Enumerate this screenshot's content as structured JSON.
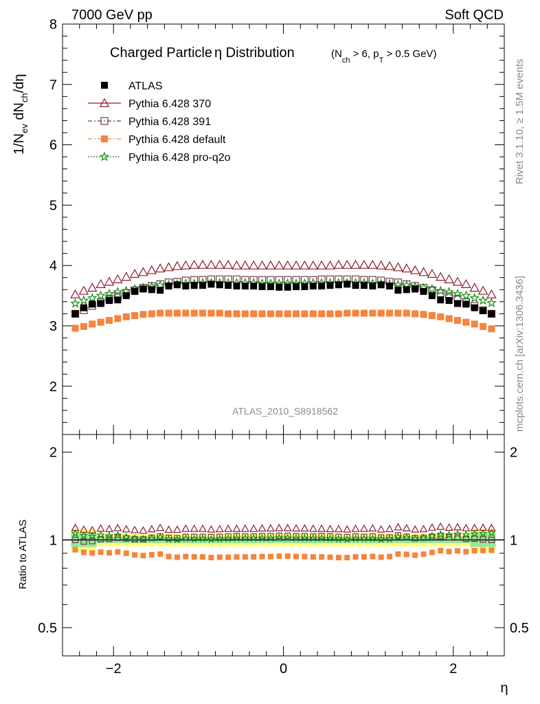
{
  "header": {
    "energy": "7000 GeV pp",
    "process": "Soft QCD",
    "title_main": "Charged Particle",
    "title_eta": "η",
    "title_dist": " Distribution",
    "cut_text": "(N",
    "cut_sub1": "ch",
    "cut_mid": " > 6, p",
    "cut_sub2": "T",
    "cut_end": " > 0.5 GeV)",
    "watermark": "ATLAS_2010_S8918562",
    "side_rivet": "Rivet 3.1.10, ≥ 1.5M events",
    "side_mcplots": "mcplots.cern.ch [arXiv:1306.3436]"
  },
  "axes": {
    "ylabel_top": "1/N",
    "ylabel_top_sub1": "ev",
    "ylabel_top_mid": " dN",
    "ylabel_top_sub2": "ch",
    "ylabel_top_end": "/dη",
    "ylabel_bottom": "Ratio to ATLAS",
    "xlabel": "η",
    "top_ticks": [
      "2",
      "3",
      "4",
      "5",
      "6",
      "7",
      "8"
    ],
    "ratio_ticks": [
      "0.5",
      "1",
      "2"
    ],
    "x_ticks": [
      "−2",
      "0",
      "2"
    ]
  },
  "chart_data": {
    "type": "scatter",
    "xlim": [
      -2.6,
      2.6
    ],
    "ylim": [
      1.2,
      8.0
    ],
    "ratio_ylim": [
      0.4,
      2.3
    ],
    "ratio_log_scale": true,
    "xlabel": "η",
    "ylabel": "1/Nev dNch/dη",
    "ratio_ylabel": "Ratio to ATLAS",
    "legend_position": "top-left",
    "x": [
      -2.45,
      -2.35,
      -2.25,
      -2.15,
      -2.05,
      -1.95,
      -1.85,
      -1.75,
      -1.65,
      -1.55,
      -1.45,
      -1.35,
      -1.25,
      -1.15,
      -1.05,
      -0.95,
      -0.85,
      -0.75,
      -0.65,
      -0.55,
      -0.45,
      -0.35,
      -0.25,
      -0.15,
      -0.05,
      0.05,
      0.15,
      0.25,
      0.35,
      0.45,
      0.55,
      0.65,
      0.75,
      0.85,
      0.95,
      1.05,
      1.15,
      1.25,
      1.35,
      1.45,
      1.55,
      1.65,
      1.75,
      1.85,
      1.95,
      2.05,
      2.15,
      2.25,
      2.35,
      2.45
    ],
    "series": [
      {
        "name": "ATLAS",
        "color": "#000000",
        "marker": "filled-square",
        "values": [
          3.2,
          3.3,
          3.36,
          3.37,
          3.42,
          3.43,
          3.5,
          3.57,
          3.61,
          3.6,
          3.59,
          3.66,
          3.68,
          3.66,
          3.67,
          3.67,
          3.69,
          3.68,
          3.67,
          3.66,
          3.66,
          3.66,
          3.65,
          3.65,
          3.64,
          3.64,
          3.65,
          3.65,
          3.66,
          3.66,
          3.67,
          3.68,
          3.69,
          3.67,
          3.67,
          3.66,
          3.68,
          3.66,
          3.59,
          3.6,
          3.61,
          3.57,
          3.5,
          3.43,
          3.42,
          3.37,
          3.36,
          3.3,
          3.25,
          3.2
        ]
      },
      {
        "name": "Pythia 6.428 370",
        "color": "#8b1a2b",
        "marker": "open-triangle",
        "values": [
          3.52,
          3.58,
          3.63,
          3.69,
          3.73,
          3.77,
          3.81,
          3.86,
          3.89,
          3.92,
          3.95,
          3.97,
          3.99,
          4.0,
          4.01,
          4.01,
          4.01,
          4.01,
          4.01,
          4.0,
          4.0,
          4.0,
          4.0,
          4.0,
          4.0,
          4.0,
          4.0,
          4.0,
          4.0,
          4.0,
          4.0,
          4.01,
          4.01,
          4.01,
          4.01,
          4.01,
          4.0,
          3.99,
          3.97,
          3.95,
          3.92,
          3.89,
          3.86,
          3.81,
          3.77,
          3.73,
          3.69,
          3.63,
          3.58,
          3.52
        ]
      },
      {
        "name": "Pythia 6.428 391",
        "color": "#6b3a4a",
        "marker": "open-square",
        "values": [
          3.2,
          3.26,
          3.33,
          3.39,
          3.45,
          3.49,
          3.54,
          3.59,
          3.63,
          3.66,
          3.69,
          3.72,
          3.73,
          3.75,
          3.76,
          3.76,
          3.77,
          3.77,
          3.77,
          3.77,
          3.76,
          3.76,
          3.76,
          3.76,
          3.76,
          3.76,
          3.76,
          3.76,
          3.76,
          3.77,
          3.77,
          3.77,
          3.77,
          3.77,
          3.76,
          3.76,
          3.75,
          3.73,
          3.72,
          3.69,
          3.66,
          3.63,
          3.59,
          3.54,
          3.49,
          3.45,
          3.39,
          3.33,
          3.26,
          3.2
        ]
      },
      {
        "name": "Pythia 6.428 default",
        "color": "#f5843c",
        "marker": "filled-square",
        "values": [
          2.96,
          2.99,
          3.03,
          3.06,
          3.09,
          3.12,
          3.15,
          3.17,
          3.19,
          3.2,
          3.21,
          3.21,
          3.21,
          3.21,
          3.21,
          3.21,
          3.21,
          3.21,
          3.2,
          3.2,
          3.2,
          3.2,
          3.2,
          3.2,
          3.2,
          3.2,
          3.2,
          3.2,
          3.2,
          3.2,
          3.2,
          3.2,
          3.21,
          3.21,
          3.21,
          3.21,
          3.21,
          3.21,
          3.21,
          3.21,
          3.2,
          3.19,
          3.17,
          3.15,
          3.12,
          3.09,
          3.06,
          3.03,
          2.99,
          2.95
        ]
      },
      {
        "name": "Pythia 6.428 pro-q2o",
        "color": "#0f8c0f",
        "marker": "star",
        "values": [
          3.37,
          3.42,
          3.46,
          3.5,
          3.53,
          3.56,
          3.58,
          3.61,
          3.63,
          3.65,
          3.67,
          3.68,
          3.69,
          3.7,
          3.7,
          3.71,
          3.71,
          3.71,
          3.71,
          3.71,
          3.71,
          3.71,
          3.7,
          3.7,
          3.7,
          3.7,
          3.7,
          3.7,
          3.71,
          3.71,
          3.71,
          3.71,
          3.71,
          3.71,
          3.71,
          3.7,
          3.7,
          3.69,
          3.68,
          3.67,
          3.65,
          3.63,
          3.61,
          3.58,
          3.56,
          3.53,
          3.5,
          3.46,
          3.42,
          3.38
        ]
      }
    ],
    "ratio_band": {
      "inner_color": "#99e699",
      "outer_color": "#ffff80"
    }
  }
}
